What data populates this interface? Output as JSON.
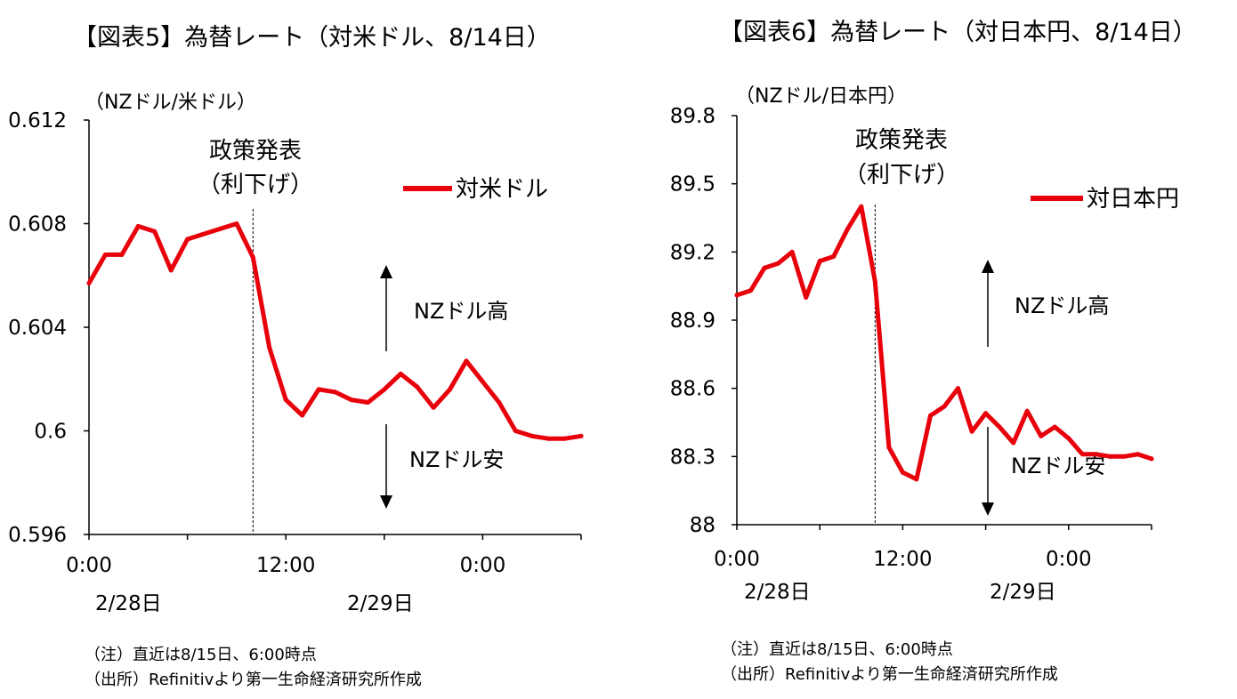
{
  "colors": {
    "series": "#e8000b",
    "axis": "#000000",
    "text": "#000000"
  },
  "charts": [
    {
      "title": "【図表5】為替レート（対米ドル、8/14日）",
      "unit": "（NZドル/米ドル）",
      "notes": [
        "（注）直近は8/15日、6:00時点",
        "（出所）Refinitivより第一生命経済研究所作成"
      ]
    },
    {
      "title": "【図表6】為替レート（対日本円、8/14日）",
      "unit": "（NZドル/日本円）",
      "notes": [
        "（注）直近は8/15日、6:00時点",
        "（出所）Refinitivより第一生命経済研究所作成"
      ]
    }
  ],
  "chart_data": [
    {
      "type": "line",
      "title": "【図表5】為替レート（対米ドル、8/14日）",
      "ylabel": "（NZドル/米ドル）",
      "ylim": [
        0.596,
        0.612
      ],
      "yticks": [
        "0.612",
        "0.608",
        "0.604",
        "0.6",
        "0.596"
      ],
      "ytick_values": [
        0.612,
        0.608,
        0.604,
        0.6,
        0.596
      ],
      "xlim": [
        0,
        30
      ],
      "xticks": [
        {
          "x": 0,
          "time": "0:00",
          "date": "2/28日"
        },
        {
          "x": 12,
          "time": "12:00",
          "date": "2/29日"
        },
        {
          "x": 24,
          "time": "0:00",
          "date": ""
        }
      ],
      "minor_xticks": [
        6,
        18
      ],
      "policy_x": 10,
      "legend": "top-right",
      "annotations": {
        "event_line1": "政策発表",
        "event_line2": "（利下げ）",
        "up": "NZドル高",
        "down": "NZドル安"
      },
      "series": [
        {
          "name": "対米ドル",
          "x": [
            0,
            1,
            2,
            3,
            4,
            5,
            6,
            7,
            8,
            9,
            10,
            11,
            12,
            13,
            14,
            15,
            16,
            17,
            18,
            19,
            20,
            21,
            22,
            23,
            24,
            25,
            26,
            27,
            28,
            29,
            30
          ],
          "values": [
            0.6057,
            0.6068,
            0.6068,
            0.6079,
            0.6077,
            0.6062,
            0.6074,
            0.6076,
            0.6078,
            0.608,
            0.6067,
            0.6032,
            0.6012,
            0.6006,
            0.6016,
            0.6015,
            0.6012,
            0.6011,
            0.6016,
            0.6022,
            0.6017,
            0.6009,
            0.6016,
            0.6027,
            0.6019,
            0.6011,
            0.6,
            0.5998,
            0.5997,
            0.5997,
            0.5998
          ]
        }
      ]
    },
    {
      "type": "line",
      "title": "【図表6】為替レート（対日本円、8/14日）",
      "ylabel": "（NZドル/日本円）",
      "ylim": [
        88.0,
        89.8
      ],
      "yticks": [
        "89.8",
        "89.5",
        "89.2",
        "88.9",
        "88.6",
        "88.3",
        "88"
      ],
      "ytick_values": [
        89.8,
        89.5,
        89.2,
        88.9,
        88.6,
        88.3,
        88.0
      ],
      "xlim": [
        0,
        30
      ],
      "xticks": [
        {
          "x": 0,
          "time": "0:00",
          "date": "2/28日"
        },
        {
          "x": 12,
          "time": "12:00",
          "date": "2/29日"
        },
        {
          "x": 24,
          "time": "0:00",
          "date": ""
        }
      ],
      "minor_xticks": [
        6,
        18
      ],
      "policy_x": 10,
      "legend": "top-right",
      "annotations": {
        "event_line1": "政策発表",
        "event_line2": "（利下げ）",
        "up": "NZドル高",
        "down": "NZドル安"
      },
      "series": [
        {
          "name": "対日本円",
          "x": [
            0,
            1,
            2,
            3,
            4,
            5,
            6,
            7,
            8,
            9,
            10,
            11,
            12,
            13,
            14,
            15,
            16,
            17,
            18,
            19,
            20,
            21,
            22,
            23,
            24,
            25,
            26,
            27,
            28,
            29,
            30
          ],
          "values": [
            89.01,
            89.03,
            89.13,
            89.15,
            89.2,
            89.0,
            89.16,
            89.18,
            89.3,
            89.4,
            89.07,
            88.34,
            88.23,
            88.2,
            88.48,
            88.52,
            88.6,
            88.41,
            88.49,
            88.43,
            88.36,
            88.5,
            88.39,
            88.43,
            88.38,
            88.31,
            88.31,
            88.3,
            88.3,
            88.31,
            88.29
          ]
        }
      ]
    }
  ]
}
